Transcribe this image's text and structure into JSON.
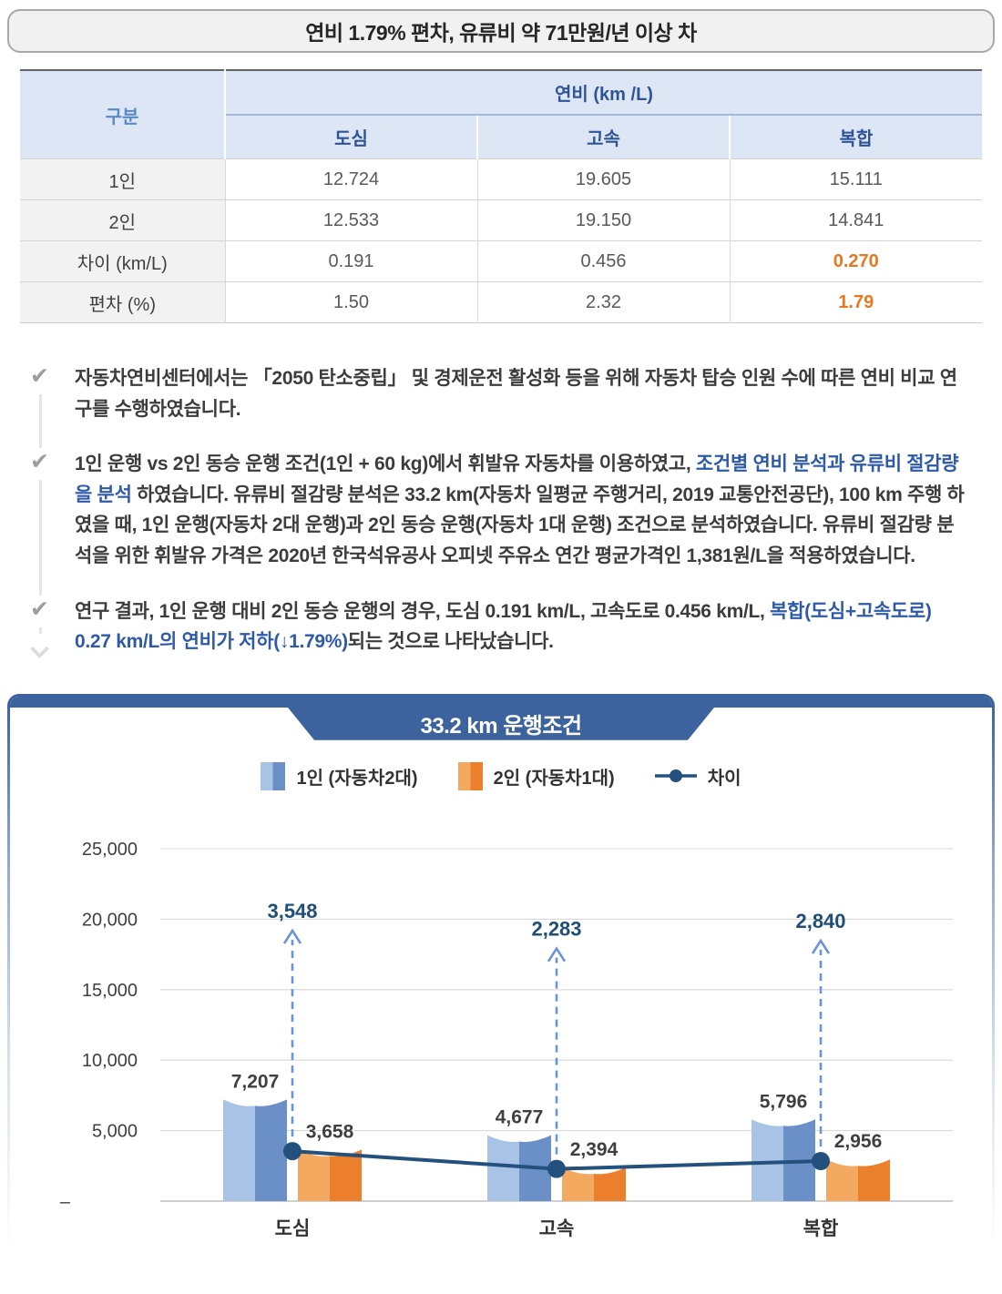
{
  "header": {
    "title": "연비 1.79% 편차, 유류비 약 71만원/년 이상 차"
  },
  "table": {
    "corner_label": "구분",
    "span_header": "연비 (km /L)",
    "sub_columns": [
      "도심",
      "고속",
      "복합"
    ],
    "rows": [
      {
        "label": "1인",
        "values": [
          "12.724",
          "19.605",
          "15.111"
        ],
        "highlight_last": false
      },
      {
        "label": "2인",
        "values": [
          "12.533",
          "19.150",
          "14.841"
        ],
        "highlight_last": false
      },
      {
        "label": "차이 (km/L)",
        "values": [
          "0.191",
          "0.456",
          "0.270"
        ],
        "highlight_last": true
      },
      {
        "label": "편차 (%)",
        "values": [
          "1.50",
          "2.32",
          "1.79"
        ],
        "highlight_last": true
      }
    ]
  },
  "bullets": [
    {
      "segments": [
        {
          "style": "normal",
          "text": "자동차연비센터에서는 「2050 탄소중립」 및 경제운전 활성화 등을 위해 자동차 탑승 인원 수에 따른 연비 비교 연구를 수행하였습니다."
        }
      ]
    },
    {
      "segments": [
        {
          "style": "normal",
          "text": "1인 운행 vs 2인 동승 운행 조건(1인 + 60 kg)에서 휘발유 자동차를 이용하였고, "
        },
        {
          "style": "blue",
          "text": "조건별 연비 분석과 유류비 절감량을 분석"
        },
        {
          "style": "normal",
          "text": " 하였습니다. 유류비 절감량 분석은 33.2 km(자동차 일평균 주행거리, 2019 교통안전공단), 100 km 주행 하였을 때, 1인 운행(자동차 2대 운행)과 2인 동승 운행(자동차 1대 운행) 조건으로 분석하였습니다. 유류비 절감량 분석을 위한 휘발유 가격은 2020년 한국석유공사 오피넷 주유소 연간 평균가격인 1,381원/L을 적용하였습니다."
        }
      ]
    },
    {
      "segments": [
        {
          "style": "normal",
          "text": "연구 결과, 1인 운행 대비 2인 동승 운행의 경우, 도심 0.191 km/L, 고속도로 0.456 km/L, "
        },
        {
          "style": "blue",
          "text": "복합(도심+고속도로) 0.27 km/L의 연비가 저하(↓1.79%)"
        },
        {
          "style": "normal",
          "text": "되는 것으로 나타났습니다."
        }
      ]
    }
  ],
  "chart_data": {
    "type": "bar",
    "title": "33.2 km 운행조건",
    "categories": [
      "도심",
      "고속",
      "복합"
    ],
    "series": [
      {
        "name": "1인 (자동차2대)",
        "type": "bar",
        "values": [
          7207,
          4677,
          5796
        ]
      },
      {
        "name": "2인 (자동차1대)",
        "type": "bar",
        "values": [
          3658,
          2394,
          2956
        ]
      },
      {
        "name": "차이",
        "type": "line",
        "values": [
          3548,
          2283,
          2840
        ]
      }
    ],
    "ylim": [
      0,
      25000
    ],
    "yticks": [
      0,
      5000,
      10000,
      15000,
      20000,
      25000
    ],
    "ytick_labels": [
      "–",
      "5,000",
      "10,000",
      "15,000",
      "20,000",
      "25,000"
    ],
    "grid": true,
    "legend_position": "top"
  },
  "colors": {
    "bar1_light": "#a9c3e6",
    "bar1_dark": "#6b90c8",
    "bar2_light": "#f3a960",
    "bar2_dark": "#ec7f2b",
    "line": "#24507e",
    "arrow": "#6a93d8",
    "diff_label": "#1f4e79",
    "bar_label": "#3f3f3f",
    "tick": "#3f3f3f",
    "grid": "#d9d9d9",
    "axis": "#bfbfbf",
    "accent_orange": "#e87722",
    "accent_blue_text": "#2e5aa8",
    "ribbon": "#3d639f",
    "ribbon_side": "#e9e1d4"
  }
}
